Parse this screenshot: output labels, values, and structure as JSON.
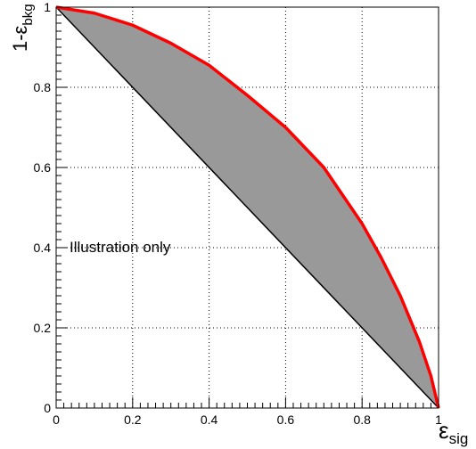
{
  "chart_data": {
    "type": "area",
    "title": "",
    "xlabel": {
      "main": "ε",
      "sub": "sig"
    },
    "ylabel": {
      "main": "1-ε",
      "sub": "bkg"
    },
    "xlim": [
      0,
      1
    ],
    "ylim": [
      0,
      1
    ],
    "grid": true,
    "x_ticks": [
      "0",
      "0.2",
      "0.4",
      "0.6",
      "0.8",
      "1"
    ],
    "y_ticks": [
      "0",
      "0.2",
      "0.4",
      "0.6",
      "0.8",
      "1"
    ],
    "annotation": "Illustration only",
    "series": [
      {
        "x": [
          0,
          0.1,
          0.2,
          0.3,
          0.4,
          0.5,
          0.6,
          0.7,
          0.8,
          0.85,
          0.9,
          0.95,
          0.98,
          1.0
        ],
        "y": [
          1.0,
          0.985,
          0.955,
          0.91,
          0.855,
          0.78,
          0.7,
          0.6,
          0.46,
          0.375,
          0.28,
          0.165,
          0.08,
          0.0
        ]
      },
      {
        "x": [
          0,
          1
        ],
        "y": [
          1,
          0
        ]
      }
    ],
    "colors": {
      "roc_curve": "#ff0000",
      "diagonal": "#000000",
      "fill": "#999999",
      "grid": "#000000"
    }
  }
}
